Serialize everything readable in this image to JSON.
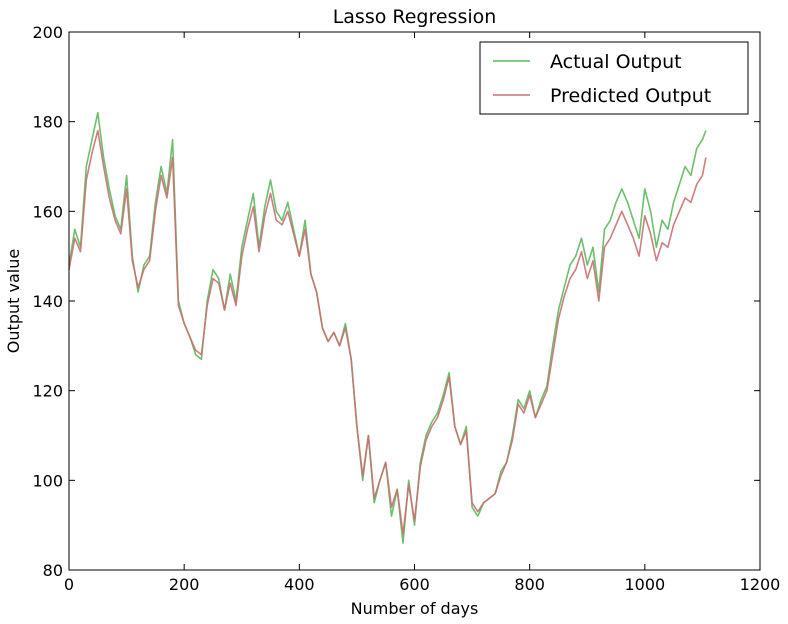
{
  "chart_data": {
    "type": "line",
    "title": "Lasso Regression",
    "xlabel": "Number of days",
    "ylabel": "Output value",
    "xlim": [
      0,
      1200
    ],
    "ylim": [
      80,
      200
    ],
    "xticks": [
      0,
      200,
      400,
      600,
      800,
      1000,
      1200
    ],
    "yticks": [
      80,
      100,
      120,
      140,
      160,
      180,
      200
    ],
    "grid": false,
    "legend_position": "top-right",
    "series": [
      {
        "name": "Actual Output",
        "color": "#5cb85c",
        "x": [
          0,
          10,
          20,
          30,
          40,
          50,
          60,
          70,
          80,
          90,
          100,
          110,
          120,
          130,
          140,
          150,
          160,
          170,
          180,
          190,
          200,
          210,
          220,
          230,
          240,
          250,
          260,
          270,
          280,
          290,
          300,
          310,
          320,
          330,
          340,
          350,
          360,
          370,
          380,
          390,
          400,
          410,
          420,
          430,
          440,
          450,
          460,
          470,
          480,
          490,
          500,
          510,
          520,
          530,
          540,
          550,
          560,
          570,
          580,
          590,
          600,
          610,
          620,
          630,
          640,
          650,
          660,
          670,
          680,
          690,
          700,
          710,
          720,
          730,
          740,
          750,
          760,
          770,
          780,
          790,
          800,
          810,
          820,
          830,
          840,
          850,
          860,
          870,
          880,
          890,
          900,
          910,
          920,
          930,
          940,
          950,
          960,
          970,
          980,
          990,
          1000,
          1010,
          1020,
          1030,
          1040,
          1050,
          1060,
          1070,
          1080,
          1090,
          1100,
          1106
        ],
        "values": [
          148,
          156,
          152,
          170,
          176,
          182,
          172,
          165,
          159,
          156,
          168,
          150,
          142,
          148,
          150,
          162,
          170,
          164,
          176,
          140,
          135,
          132,
          128,
          127,
          140,
          147,
          145,
          138,
          146,
          140,
          152,
          158,
          164,
          152,
          161,
          167,
          160,
          158,
          162,
          156,
          150,
          158,
          146,
          142,
          134,
          131,
          133,
          130,
          135,
          127,
          112,
          100,
          110,
          95,
          100,
          104,
          92,
          98,
          86,
          100,
          90,
          104,
          110,
          113,
          115,
          119,
          124,
          112,
          108,
          112,
          94,
          92,
          95,
          96,
          97,
          102,
          104,
          110,
          118,
          116,
          120,
          114,
          118,
          121,
          130,
          138,
          143,
          148,
          150,
          154,
          148,
          152,
          142,
          156,
          158,
          162,
          165,
          162,
          158,
          154,
          165,
          160,
          152,
          158,
          156,
          162,
          166,
          170,
          168,
          174,
          176,
          178
        ]
      },
      {
        "name": "Predicted Output",
        "color": "#c87070",
        "x": [
          0,
          10,
          20,
          30,
          40,
          50,
          60,
          70,
          80,
          90,
          100,
          110,
          120,
          130,
          140,
          150,
          160,
          170,
          180,
          190,
          200,
          210,
          220,
          230,
          240,
          250,
          260,
          270,
          280,
          290,
          300,
          310,
          320,
          330,
          340,
          350,
          360,
          370,
          380,
          390,
          400,
          410,
          420,
          430,
          440,
          450,
          460,
          470,
          480,
          490,
          500,
          510,
          520,
          530,
          540,
          550,
          560,
          570,
          580,
          590,
          600,
          610,
          620,
          630,
          640,
          650,
          660,
          670,
          680,
          690,
          700,
          710,
          720,
          730,
          740,
          750,
          760,
          770,
          780,
          790,
          800,
          810,
          820,
          830,
          840,
          850,
          860,
          870,
          880,
          890,
          900,
          910,
          920,
          930,
          940,
          950,
          960,
          970,
          980,
          990,
          1000,
          1010,
          1020,
          1030,
          1040,
          1050,
          1060,
          1070,
          1080,
          1090,
          1100,
          1106
        ],
        "values": [
          147,
          154,
          151,
          167,
          173,
          178,
          170,
          163,
          158,
          155,
          165,
          149,
          143,
          147,
          149,
          160,
          168,
          163,
          172,
          139,
          135,
          132,
          129,
          128,
          139,
          145,
          144,
          138,
          144,
          139,
          150,
          156,
          161,
          151,
          159,
          164,
          158,
          157,
          160,
          155,
          150,
          156,
          146,
          142,
          134,
          131,
          133,
          130,
          134,
          127,
          112,
          101,
          110,
          96,
          100,
          104,
          94,
          98,
          88,
          99,
          91,
          103,
          109,
          112,
          114,
          118,
          123,
          112,
          108,
          111,
          95,
          93,
          95,
          96,
          97,
          101,
          104,
          109,
          117,
          115,
          119,
          114,
          117,
          120,
          128,
          136,
          141,
          145,
          147,
          151,
          145,
          149,
          140,
          152,
          154,
          157,
          160,
          157,
          154,
          150,
          159,
          155,
          149,
          153,
          152,
          157,
          160,
          163,
          162,
          166,
          168,
          172
        ]
      }
    ]
  }
}
